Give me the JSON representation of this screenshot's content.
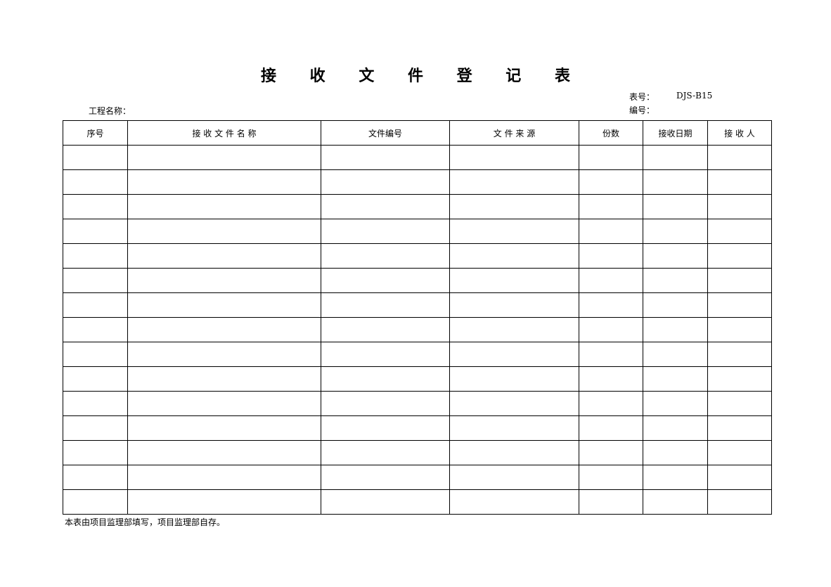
{
  "title": "接 收 文 件 登 记 表",
  "form_no_label": "表号：",
  "form_no_value": "DJS-B15",
  "serial_label": "编号：",
  "project_label": "工程名称：",
  "columns": [
    "序号",
    "接 收 文 件 名 称",
    "文件编号",
    "文 件 来 源",
    "份数",
    "接收日期",
    "接 收 人"
  ],
  "row_count": 15,
  "footer_note": "本表由项目监理部填写，项目监理部自存。"
}
